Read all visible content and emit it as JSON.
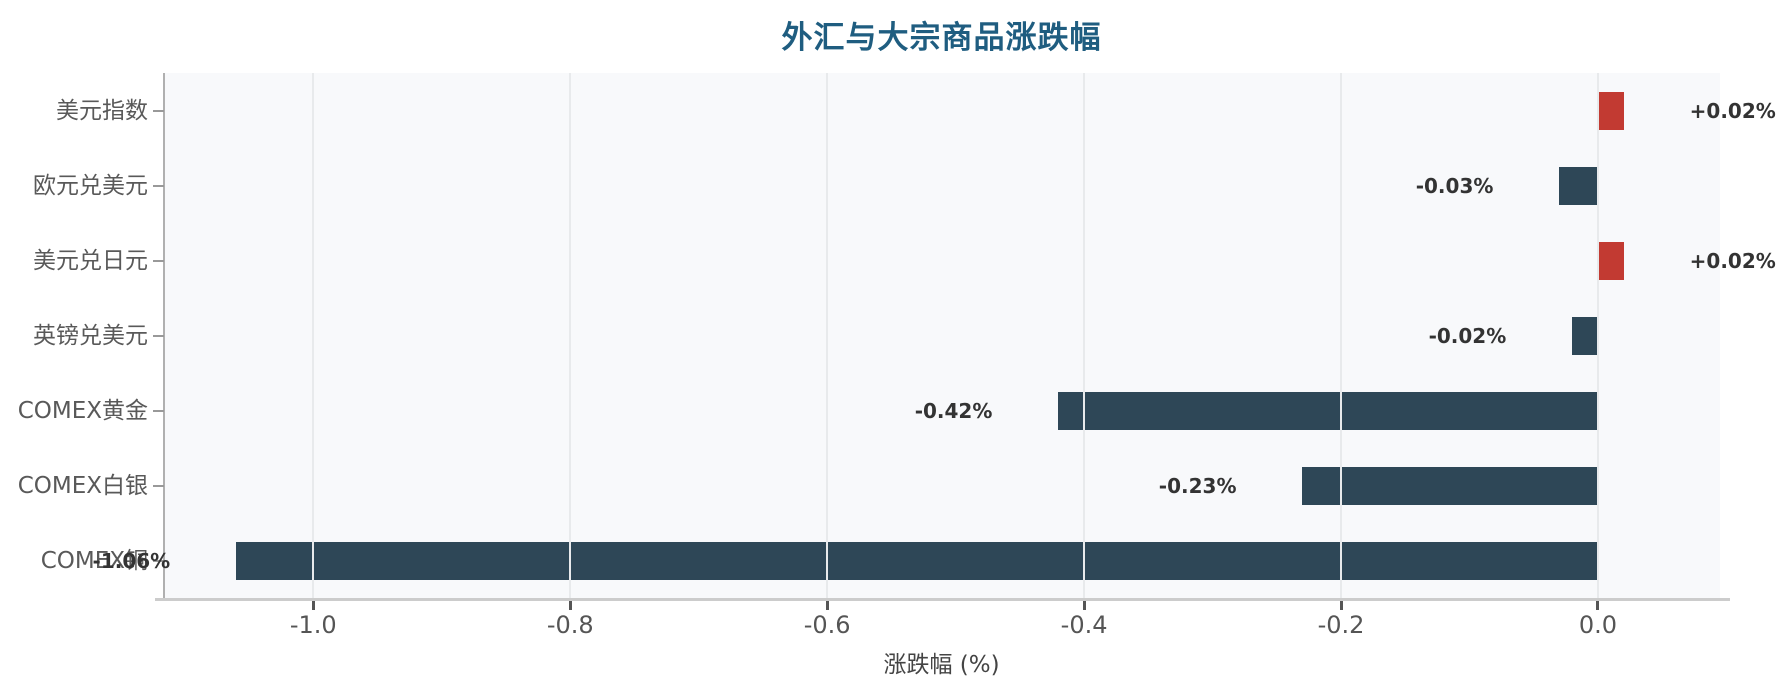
{
  "title": "外汇与大宗商品涨跌幅",
  "colors": {
    "title": "#1f5d80",
    "positive_bar": "#c23a32",
    "negative_bar": "#2e4757",
    "plot_background": "#f8f9fb",
    "gridline": "#e8eaec",
    "zero_line": "#a8abb0",
    "category_text": "#595959",
    "tick_text": "#555555",
    "value_text": "#333333",
    "xlabel_text": "#444444"
  },
  "chart_data": {
    "type": "bar",
    "orientation": "horizontal",
    "title": "外汇与大宗商品涨跌幅",
    "categories": [
      "美元指数",
      "欧元兑美元",
      "美元兑日元",
      "英镑兑美元",
      "COMEX黄金",
      "COMEX白银",
      "COMEX铜"
    ],
    "values": [
      0.02,
      -0.03,
      0.02,
      -0.02,
      -0.42,
      -0.23,
      -1.06
    ],
    "value_labels": [
      "+0.02%",
      "-0.03%",
      "+0.02%",
      "-0.02%",
      "-0.42%",
      "-0.23%",
      "-1.06%"
    ],
    "xlabel": "涨跌幅 (%)",
    "ylabel": "",
    "xlim": [
      -1.117,
      0.095
    ],
    "xticks": [
      -1.0,
      -0.8,
      -0.6,
      -0.4,
      -0.2,
      0.0
    ],
    "xtick_labels": [
      "-1.0",
      "-0.8",
      "-0.6",
      "-0.4",
      "-0.2",
      "0.0"
    ],
    "grid": true,
    "grid_axis": "x",
    "legend": null
  }
}
